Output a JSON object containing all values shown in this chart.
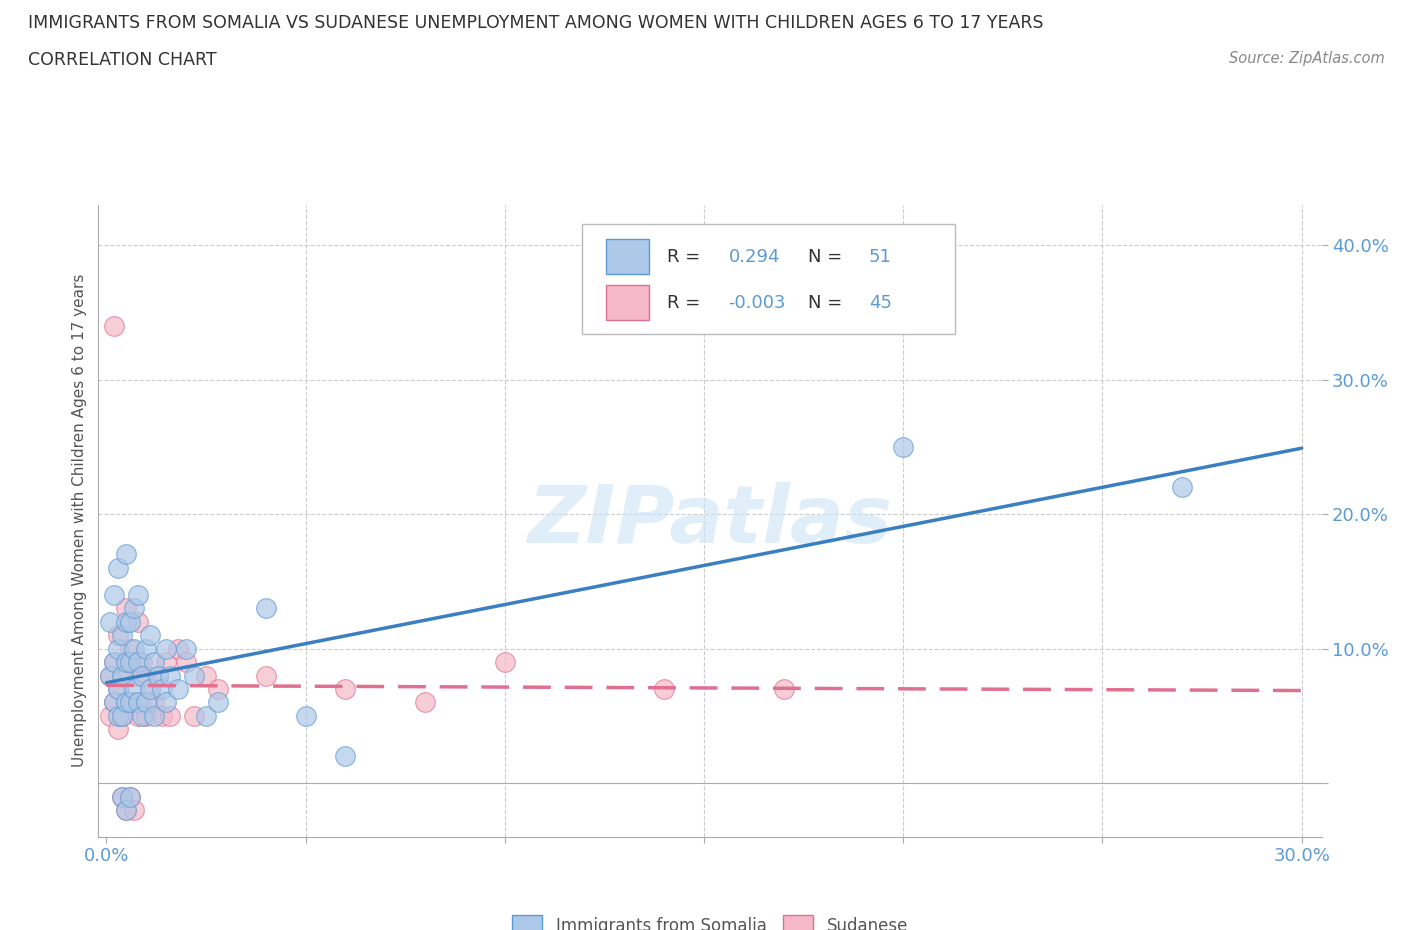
{
  "title": "IMMIGRANTS FROM SOMALIA VS SUDANESE UNEMPLOYMENT AMONG WOMEN WITH CHILDREN AGES 6 TO 17 YEARS",
  "subtitle": "CORRELATION CHART",
  "source": "Source: ZipAtlas.com",
  "ylabel": "Unemployment Among Women with Children Ages 6 to 17 years",
  "xlim": [
    -0.002,
    0.305
  ],
  "ylim": [
    -0.04,
    0.43
  ],
  "ytick_positions": [
    0.0,
    0.1,
    0.2,
    0.3,
    0.4
  ],
  "ytick_labels": [
    "",
    "10.0%",
    "20.0%",
    "30.0%",
    "40.0%"
  ],
  "xtick_positions": [
    0.0,
    0.05,
    0.1,
    0.15,
    0.2,
    0.25,
    0.3
  ],
  "xtick_labels": [
    "0.0%",
    "",
    "",
    "",
    "",
    "",
    "30.0%"
  ],
  "somalia_color": "#adc8e8",
  "somalia_edge_color": "#5b9bd5",
  "sudanese_color": "#f4b8c8",
  "sudanese_edge_color": "#e07090",
  "somalia_line_color": "#3a7fc1",
  "sudanese_line_color": "#e07090",
  "somalia_R": 0.294,
  "somalia_N": 51,
  "sudanese_R": -0.003,
  "sudanese_N": 45,
  "watermark": "ZIPatlas",
  "background_color": "#ffffff",
  "grid_color": "#cccccc",
  "tick_color": "#5b9bd5",
  "somalia_x": [
    0.001,
    0.001,
    0.002,
    0.002,
    0.002,
    0.003,
    0.003,
    0.003,
    0.003,
    0.004,
    0.004,
    0.004,
    0.004,
    0.005,
    0.005,
    0.005,
    0.005,
    0.005,
    0.006,
    0.006,
    0.006,
    0.006,
    0.007,
    0.007,
    0.007,
    0.008,
    0.008,
    0.008,
    0.009,
    0.009,
    0.01,
    0.01,
    0.011,
    0.011,
    0.012,
    0.012,
    0.013,
    0.014,
    0.015,
    0.015,
    0.016,
    0.018,
    0.02,
    0.022,
    0.025,
    0.028,
    0.04,
    0.05,
    0.06,
    0.2,
    0.27
  ],
  "somalia_y": [
    0.08,
    0.12,
    0.06,
    0.09,
    0.14,
    0.05,
    0.07,
    0.1,
    0.16,
    0.05,
    0.08,
    0.11,
    -0.01,
    0.06,
    0.09,
    0.12,
    0.17,
    -0.02,
    0.06,
    0.09,
    0.12,
    -0.01,
    0.07,
    0.1,
    0.13,
    0.06,
    0.09,
    0.14,
    0.05,
    0.08,
    0.06,
    0.1,
    0.07,
    0.11,
    0.05,
    0.09,
    0.08,
    0.07,
    0.06,
    0.1,
    0.08,
    0.07,
    0.1,
    0.08,
    0.05,
    0.06,
    0.13,
    0.05,
    0.02,
    0.25,
    0.22
  ],
  "sudanese_x": [
    0.001,
    0.001,
    0.002,
    0.002,
    0.002,
    0.003,
    0.003,
    0.003,
    0.004,
    0.004,
    0.004,
    0.005,
    0.005,
    0.005,
    0.005,
    0.006,
    0.006,
    0.006,
    0.007,
    0.007,
    0.007,
    0.008,
    0.008,
    0.008,
    0.009,
    0.009,
    0.01,
    0.01,
    0.011,
    0.012,
    0.013,
    0.014,
    0.015,
    0.016,
    0.018,
    0.02,
    0.022,
    0.025,
    0.028,
    0.04,
    0.06,
    0.08,
    0.1,
    0.14,
    0.17
  ],
  "sudanese_y": [
    0.05,
    0.08,
    0.06,
    0.09,
    0.34,
    0.04,
    0.07,
    0.11,
    0.05,
    0.08,
    -0.01,
    0.06,
    0.09,
    0.13,
    -0.02,
    0.06,
    0.1,
    -0.01,
    0.06,
    0.09,
    -0.02,
    0.05,
    0.08,
    0.12,
    0.06,
    0.09,
    0.05,
    0.08,
    0.07,
    0.06,
    0.08,
    0.05,
    0.09,
    0.05,
    0.1,
    0.09,
    0.05,
    0.08,
    0.07,
    0.08,
    0.07,
    0.06,
    0.09,
    0.07,
    0.07
  ]
}
